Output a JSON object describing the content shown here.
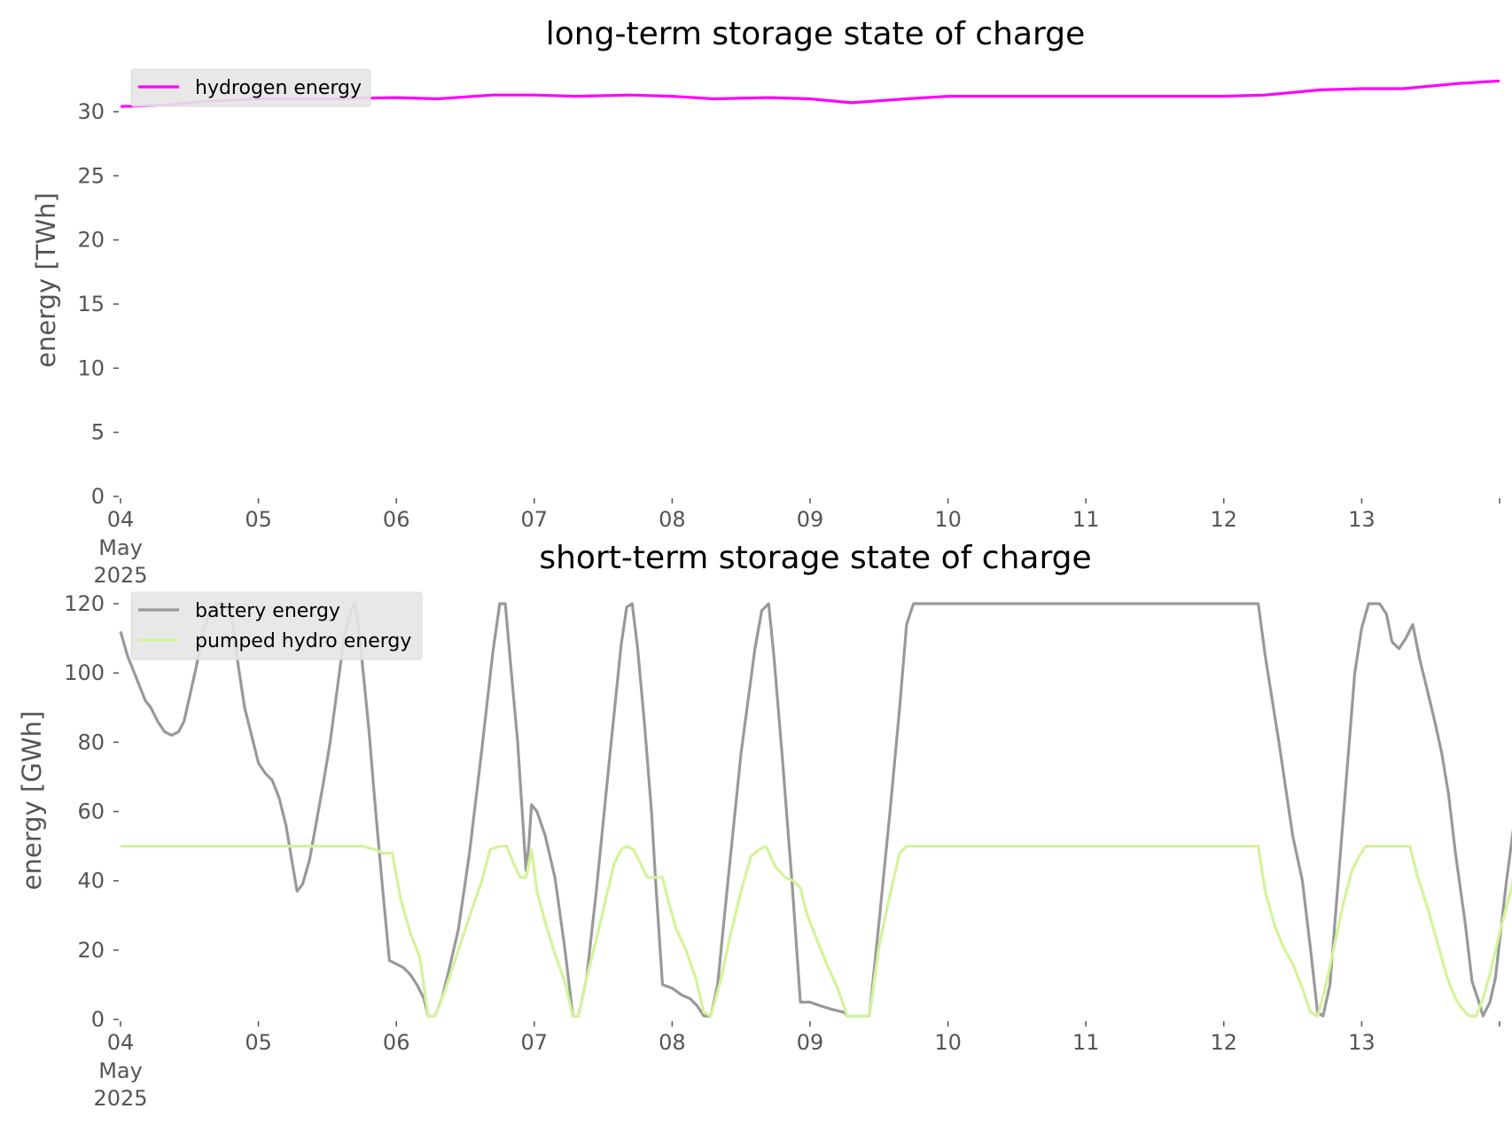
{
  "chart_data": [
    {
      "type": "line",
      "title": "long-term storage state of charge",
      "xlabel": "",
      "ylabel": "energy [TWh]",
      "x_tick_labels": [
        "04",
        "05",
        "06",
        "07",
        "08",
        "09",
        "10",
        "11",
        "12",
        "13"
      ],
      "x_tick_sublabels": [
        "May",
        "2025"
      ],
      "x_range_days": [
        0,
        10
      ],
      "ylim": [
        0,
        30
      ],
      "y_ticks": [
        0,
        5,
        10,
        15,
        20,
        25,
        30
      ],
      "grid": false,
      "legend_position": "upper left",
      "series": [
        {
          "name": "hydrogen energy",
          "color": "#ff00ff",
          "points": [
            [
              0,
              30.4
            ],
            [
              0.3,
              30.5
            ],
            [
              0.6,
              30.8
            ],
            [
              1,
              31.0
            ],
            [
              1.5,
              31.0
            ],
            [
              2,
              31.1
            ],
            [
              2.3,
              31.0
            ],
            [
              2.7,
              31.3
            ],
            [
              3,
              31.3
            ],
            [
              3.3,
              31.2
            ],
            [
              3.7,
              31.3
            ],
            [
              4,
              31.2
            ],
            [
              4.3,
              31.0
            ],
            [
              4.7,
              31.1
            ],
            [
              5,
              31.0
            ],
            [
              5.3,
              30.7
            ],
            [
              5.7,
              31.0
            ],
            [
              6,
              31.2
            ],
            [
              6.5,
              31.2
            ],
            [
              7,
              31.2
            ],
            [
              7.5,
              31.2
            ],
            [
              8,
              31.2
            ],
            [
              8.3,
              31.3
            ],
            [
              8.7,
              31.7
            ],
            [
              9,
              31.8
            ],
            [
              9.3,
              31.8
            ],
            [
              9.7,
              32.2
            ],
            [
              10,
              32.4
            ]
          ]
        }
      ]
    },
    {
      "type": "line",
      "title": "short-term storage state of charge",
      "xlabel": "",
      "ylabel": "energy [GWh]",
      "x_tick_labels": [
        "04",
        "05",
        "06",
        "07",
        "08",
        "09",
        "10",
        "11",
        "12",
        "13"
      ],
      "x_tick_sublabels": [
        "May",
        "2025"
      ],
      "x_range_days": [
        0,
        10
      ],
      "ylim": [
        0,
        120
      ],
      "y_ticks": [
        0,
        20,
        40,
        60,
        80,
        100,
        120
      ],
      "grid": false,
      "legend_position": "upper left",
      "series": [
        {
          "name": "battery energy",
          "color": "#999999",
          "points": [
            [
              0,
              112
            ],
            [
              0.05,
              105
            ],
            [
              0.1,
              100
            ],
            [
              0.18,
              92
            ],
            [
              0.22,
              90
            ],
            [
              0.27,
              86
            ],
            [
              0.32,
              83
            ],
            [
              0.37,
              82
            ],
            [
              0.42,
              83
            ],
            [
              0.46,
              86
            ],
            [
              0.5,
              93
            ],
            [
              0.55,
              102
            ],
            [
              0.6,
              112
            ],
            [
              0.65,
              118
            ],
            [
              0.7,
              120
            ],
            [
              0.75,
              120
            ],
            [
              0.8,
              118
            ],
            [
              0.85,
              103
            ],
            [
              0.9,
              90
            ],
            [
              0.95,
              82
            ],
            [
              1,
              74
            ],
            [
              1.05,
              71
            ],
            [
              1.1,
              69
            ],
            [
              1.15,
              64
            ],
            [
              1.2,
              56
            ],
            [
              1.25,
              44
            ],
            [
              1.28,
              37
            ],
            [
              1.32,
              39
            ],
            [
              1.37,
              46
            ],
            [
              1.42,
              57
            ],
            [
              1.47,
              68
            ],
            [
              1.52,
              80
            ],
            [
              1.57,
              95
            ],
            [
              1.62,
              110
            ],
            [
              1.67,
              118
            ],
            [
              1.7,
              120
            ],
            [
              1.73,
              112
            ],
            [
              1.8,
              84
            ],
            [
              1.85,
              60
            ],
            [
              1.9,
              38
            ],
            [
              1.95,
              17
            ],
            [
              2,
              16
            ],
            [
              2.05,
              15
            ],
            [
              2.1,
              13
            ],
            [
              2.15,
              10
            ],
            [
              2.2,
              6
            ],
            [
              2.23,
              1
            ],
            [
              2.28,
              1
            ],
            [
              2.33,
              6
            ],
            [
              2.38,
              14
            ],
            [
              2.45,
              26
            ],
            [
              2.53,
              48
            ],
            [
              2.62,
              78
            ],
            [
              2.7,
              106
            ],
            [
              2.75,
              120
            ],
            [
              2.79,
              120
            ],
            [
              2.83,
              102
            ],
            [
              2.88,
              80
            ],
            [
              2.94,
              43
            ],
            [
              2.96,
              50
            ],
            [
              2.98,
              62
            ],
            [
              3.02,
              60
            ],
            [
              3.08,
              53
            ],
            [
              3.15,
              41
            ],
            [
              3.22,
              21
            ],
            [
              3.28,
              1
            ],
            [
              3.32,
              1
            ],
            [
              3.38,
              12
            ],
            [
              3.45,
              37
            ],
            [
              3.55,
              77
            ],
            [
              3.63,
              108
            ],
            [
              3.67,
              119
            ],
            [
              3.71,
              120
            ],
            [
              3.75,
              107
            ],
            [
              3.8,
              85
            ],
            [
              3.85,
              60
            ],
            [
              3.88,
              40
            ],
            [
              3.93,
              10
            ],
            [
              4,
              9
            ],
            [
              4.07,
              7
            ],
            [
              4.13,
              6
            ],
            [
              4.18,
              4
            ],
            [
              4.23,
              1
            ],
            [
              4.28,
              1
            ],
            [
              4.33,
              10
            ],
            [
              4.4,
              38
            ],
            [
              4.5,
              77
            ],
            [
              4.6,
              107
            ],
            [
              4.65,
              118
            ],
            [
              4.7,
              120
            ],
            [
              4.74,
              104
            ],
            [
              4.8,
              75
            ],
            [
              4.87,
              39
            ],
            [
              4.93,
              5
            ],
            [
              5,
              5
            ],
            [
              5.07,
              4
            ],
            [
              5.15,
              3
            ],
            [
              5.25,
              2
            ],
            [
              5.27,
              1
            ],
            [
              5.3,
              1
            ],
            [
              5.43,
              1
            ],
            [
              5.5,
              28
            ],
            [
              5.58,
              60
            ],
            [
              5.65,
              90
            ],
            [
              5.7,
              114
            ],
            [
              5.75,
              120
            ],
            [
              6,
              120
            ],
            [
              7,
              120
            ],
            [
              8,
              120
            ],
            [
              8.25,
              120
            ],
            [
              8.3,
              105
            ],
            [
              8.4,
              80
            ],
            [
              8.5,
              53
            ],
            [
              8.57,
              40
            ],
            [
              8.63,
              20
            ],
            [
              8.68,
              2
            ],
            [
              8.72,
              1
            ],
            [
              8.77,
              10
            ],
            [
              8.83,
              40
            ],
            [
              8.9,
              75
            ],
            [
              8.95,
              100
            ],
            [
              9,
              113
            ],
            [
              9.05,
              120
            ],
            [
              9.13,
              120
            ],
            [
              9.18,
              117
            ],
            [
              9.22,
              109
            ],
            [
              9.27,
              107
            ],
            [
              9.32,
              110
            ],
            [
              9.37,
              114
            ],
            [
              9.42,
              104
            ],
            [
              9.47,
              96
            ],
            [
              9.53,
              86
            ],
            [
              9.58,
              77
            ],
            [
              9.63,
              65
            ],
            [
              9.68,
              48
            ],
            [
              9.75,
              28
            ],
            [
              9.8,
              11
            ],
            [
              9.85,
              5
            ],
            [
              9.88,
              1
            ],
            [
              9.93,
              5
            ],
            [
              9.97,
              12
            ],
            [
              10.05,
              40
            ],
            [
              10.15,
              70
            ],
            [
              10.23,
              94
            ],
            [
              10.28,
              106
            ],
            [
              10.32,
              112
            ],
            [
              10.37,
              120
            ],
            [
              10.6,
              120
            ]
          ]
        },
        {
          "name": "pumped hydro energy",
          "color": "#d4f39a",
          "points": [
            [
              0,
              50
            ],
            [
              1,
              50
            ],
            [
              1.75,
              50
            ],
            [
              1.85,
              49
            ],
            [
              1.9,
              48
            ],
            [
              1.97,
              48
            ],
            [
              2.03,
              35
            ],
            [
              2.1,
              25
            ],
            [
              2.17,
              18
            ],
            [
              2.23,
              1
            ],
            [
              2.28,
              1
            ],
            [
              2.35,
              8
            ],
            [
              2.45,
              20
            ],
            [
              2.55,
              32
            ],
            [
              2.62,
              40
            ],
            [
              2.68,
              49
            ],
            [
              2.75,
              50
            ],
            [
              2.8,
              50
            ],
            [
              2.85,
              45
            ],
            [
              2.9,
              41
            ],
            [
              2.94,
              41
            ],
            [
              2.98,
              49
            ],
            [
              3.02,
              37
            ],
            [
              3.08,
              28
            ],
            [
              3.15,
              19
            ],
            [
              3.22,
              11
            ],
            [
              3.28,
              1
            ],
            [
              3.32,
              1
            ],
            [
              3.38,
              12
            ],
            [
              3.45,
              23
            ],
            [
              3.52,
              35
            ],
            [
              3.58,
              45
            ],
            [
              3.63,
              49
            ],
            [
              3.67,
              50
            ],
            [
              3.72,
              49
            ],
            [
              3.77,
              45
            ],
            [
              3.82,
              41
            ],
            [
              3.87,
              41
            ],
            [
              3.93,
              41
            ],
            [
              3.98,
              33
            ],
            [
              4.03,
              26
            ],
            [
              4.1,
              20
            ],
            [
              4.17,
              12
            ],
            [
              4.23,
              2
            ],
            [
              4.28,
              1
            ],
            [
              4.35,
              11
            ],
            [
              4.42,
              24
            ],
            [
              4.5,
              37
            ],
            [
              4.57,
              47
            ],
            [
              4.63,
              49
            ],
            [
              4.68,
              50
            ],
            [
              4.75,
              44
            ],
            [
              4.82,
              41
            ],
            [
              4.88,
              40
            ],
            [
              4.93,
              38
            ],
            [
              4.98,
              30
            ],
            [
              5.05,
              23
            ],
            [
              5.12,
              16
            ],
            [
              5.2,
              9
            ],
            [
              5.27,
              1
            ],
            [
              5.3,
              1
            ],
            [
              5.43,
              1
            ],
            [
              5.5,
              21
            ],
            [
              5.58,
              36
            ],
            [
              5.65,
              48
            ],
            [
              5.7,
              50
            ],
            [
              6,
              50
            ],
            [
              7,
              50
            ],
            [
              8,
              50
            ],
            [
              8.25,
              50
            ],
            [
              8.3,
              37
            ],
            [
              8.37,
              27
            ],
            [
              8.43,
              21
            ],
            [
              8.5,
              16
            ],
            [
              8.57,
              9
            ],
            [
              8.63,
              2
            ],
            [
              8.68,
              1
            ],
            [
              8.73,
              8
            ],
            [
              8.8,
              21
            ],
            [
              8.87,
              34
            ],
            [
              8.93,
              43
            ],
            [
              8.98,
              47
            ],
            [
              9.03,
              50
            ],
            [
              9.35,
              50
            ],
            [
              9.4,
              42
            ],
            [
              9.48,
              32
            ],
            [
              9.55,
              22
            ],
            [
              9.62,
              12
            ],
            [
              9.68,
              6
            ],
            [
              9.73,
              3
            ],
            [
              9.78,
              1
            ],
            [
              9.83,
              1
            ],
            [
              9.88,
              6
            ],
            [
              9.93,
              13
            ],
            [
              10,
              25
            ],
            [
              10.08,
              37
            ],
            [
              10.13,
              47
            ],
            [
              10.17,
              50
            ],
            [
              10.6,
              50
            ]
          ]
        }
      ]
    }
  ]
}
